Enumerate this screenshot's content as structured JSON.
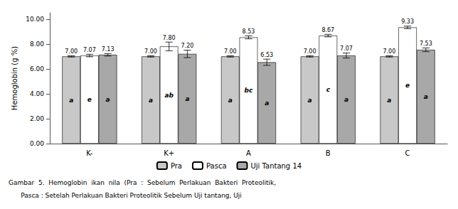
{
  "chart_data": {
    "type": "bar",
    "categories": [
      "K-",
      "K+",
      "A",
      "B",
      "C"
    ],
    "series": [
      {
        "name": "Pra",
        "color": "#c8c8c8",
        "values": [
          7.0,
          7.0,
          7.0,
          7.0,
          7.0
        ],
        "value_labels": [
          "7.00",
          "7.00",
          "7.00",
          "7.00",
          "7.00"
        ],
        "errors": [
          0.05,
          0.05,
          0.05,
          0.05,
          0.05
        ],
        "letters": [
          "a",
          "a",
          "a",
          "a",
          "a"
        ]
      },
      {
        "name": "Pasca",
        "color": "#ffffff",
        "values": [
          7.07,
          7.8,
          8.53,
          8.67,
          9.33
        ],
        "value_labels": [
          "7.07",
          "7.80",
          "8.53",
          "8.67",
          "9.33"
        ],
        "errors": [
          0.1,
          0.35,
          0.12,
          0.1,
          0.1
        ],
        "letters": [
          "e",
          "ab",
          "bc",
          "c",
          "e"
        ]
      },
      {
        "name": "Uji Tantang 14",
        "color": "#a8a8a8",
        "values": [
          7.13,
          7.2,
          6.53,
          7.07,
          7.53
        ],
        "value_labels": [
          "7.13",
          "7.20",
          "6.53",
          "7.07",
          "7.53"
        ],
        "errors": [
          0.1,
          0.3,
          0.25,
          0.2,
          0.15
        ],
        "letters": [
          "a",
          "a",
          "a",
          "a",
          "a"
        ]
      }
    ],
    "ylabel": "Hemoglobin (g %)",
    "ylim": [
      0,
      10.5
    ],
    "yticks": [
      {
        "value": 0,
        "label": "0.00"
      },
      {
        "value": 2,
        "label": "2.00"
      },
      {
        "value": 4,
        "label": "4.00"
      },
      {
        "value": 6,
        "label": "6.00"
      },
      {
        "value": 8,
        "label": "8.00"
      },
      {
        "value": 10,
        "label": "10.00"
      }
    ],
    "caption": [
      "Gambar  5.  Hemoglobin  ikan  nila  (Pra  :  Sebelum  Perlakuan  Bakteri  Proteolitik,",
      "      Pasca : Setelah Perlakuan Bakteri Proteolitik Sebelum Uji tantang, Uji"
    ],
    "data_labels": true,
    "grid": false,
    "legend": "bottom"
  }
}
